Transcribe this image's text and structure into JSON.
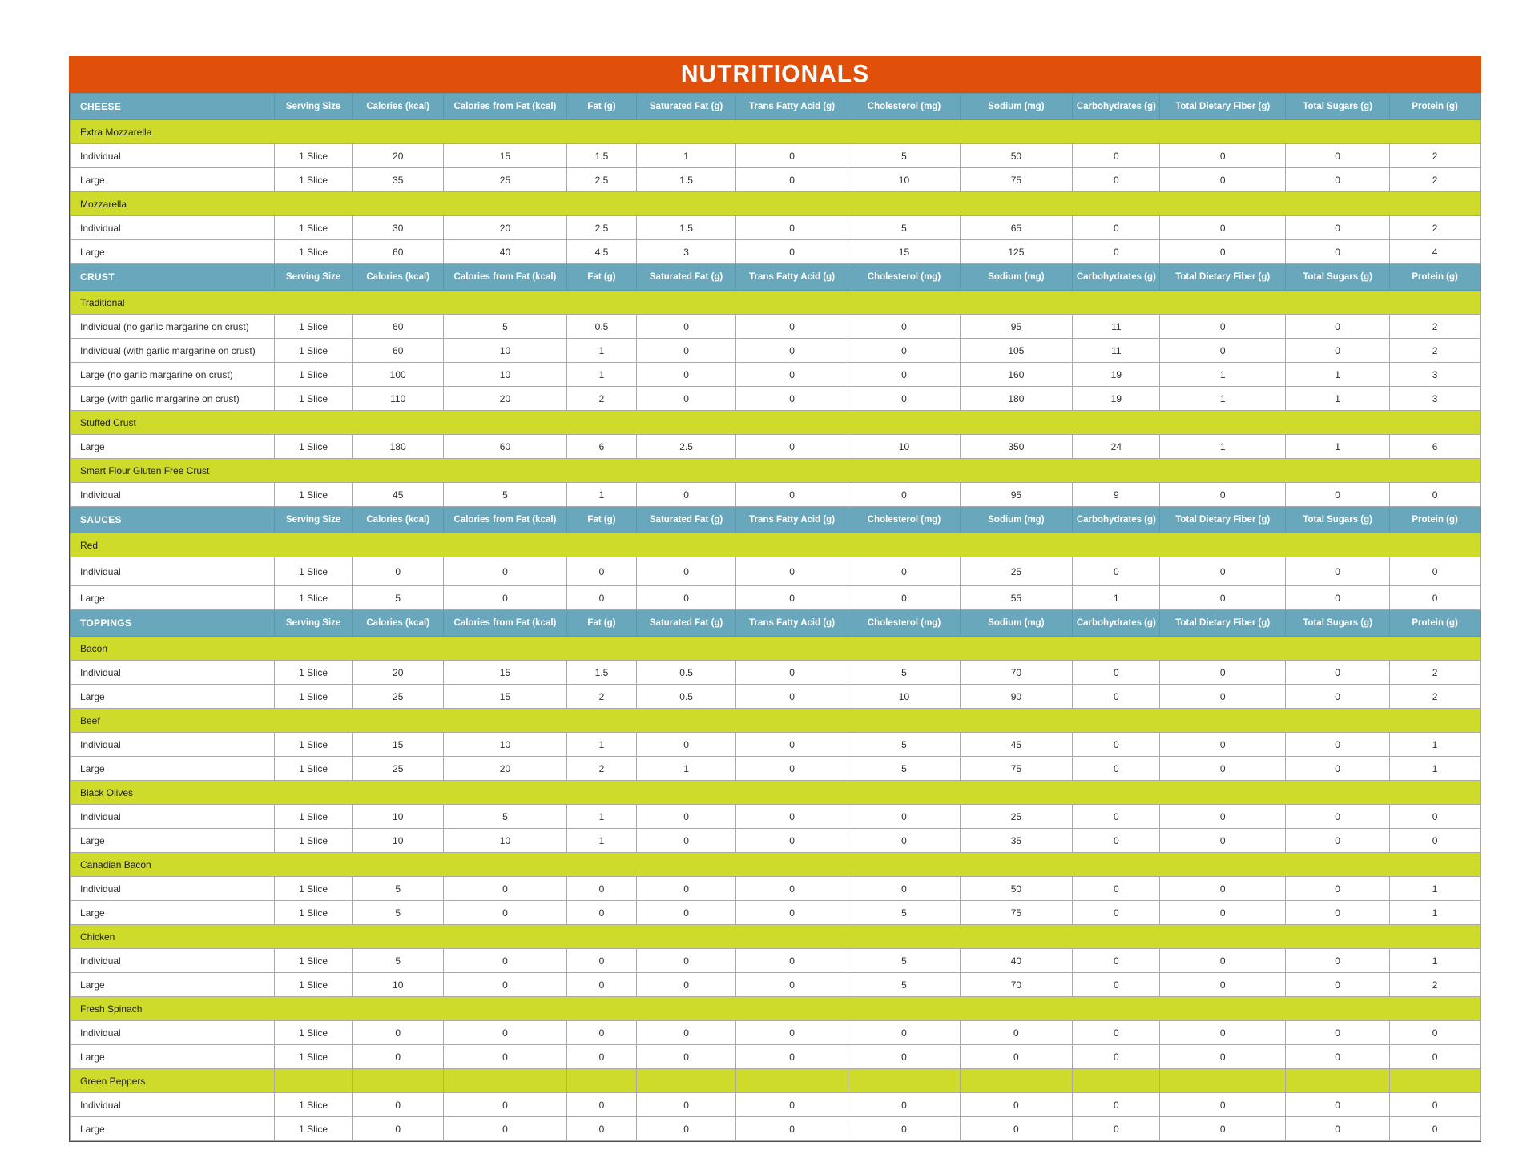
{
  "title": "NUTRITIONALS",
  "colors": {
    "header_orange": "#E0500B",
    "column_header_teal": "#69A8BC",
    "section_chartreuse": "#CEDB2A"
  },
  "columns": [
    "Serving Size",
    "Calories (kcal)",
    "Calories from Fat (kcal)",
    "Fat (g)",
    "Saturated Fat (g)",
    "Trans Fatty Acid (g)",
    "Cholesterol (mg)",
    "Sodium (mg)",
    "Carbohydrates (g)",
    "Total Dietary Fiber (g)",
    "Total Sugars (g)",
    "Protein (g)"
  ],
  "sections": [
    {
      "group": "CHEESE",
      "items": [
        {
          "name": "Extra Mozzarella",
          "rows": [
            {
              "label": "Individual",
              "values": [
                "1 Slice",
                "20",
                "15",
                "1.5",
                "1",
                "0",
                "5",
                "50",
                "0",
                "0",
                "0",
                "2"
              ]
            },
            {
              "label": "Large",
              "values": [
                "1 Slice",
                "35",
                "25",
                "2.5",
                "1.5",
                "0",
                "10",
                "75",
                "0",
                "0",
                "0",
                "2"
              ]
            }
          ]
        },
        {
          "name": "Mozzarella",
          "rows": [
            {
              "label": "Individual",
              "values": [
                "1 Slice",
                "30",
                "20",
                "2.5",
                "1.5",
                "0",
                "5",
                "65",
                "0",
                "0",
                "0",
                "2"
              ]
            },
            {
              "label": "Large",
              "values": [
                "1 Slice",
                "60",
                "40",
                "4.5",
                "3",
                "0",
                "15",
                "125",
                "0",
                "0",
                "0",
                "4"
              ]
            }
          ]
        }
      ]
    },
    {
      "group": "CRUST",
      "items": [
        {
          "name": "Traditional",
          "rows": [
            {
              "label": "Individual (no garlic margarine on crust)",
              "values": [
                "1 Slice",
                "60",
                "5",
                "0.5",
                "0",
                "0",
                "0",
                "95",
                "11",
                "0",
                "0",
                "2"
              ]
            },
            {
              "label": "Individual (with garlic margarine on crust)",
              "values": [
                "1 Slice",
                "60",
                "10",
                "1",
                "0",
                "0",
                "0",
                "105",
                "11",
                "0",
                "0",
                "2"
              ]
            },
            {
              "label": "Large (no garlic margarine on crust)",
              "values": [
                "1 Slice",
                "100",
                "10",
                "1",
                "0",
                "0",
                "0",
                "160",
                "19",
                "1",
                "1",
                "3"
              ]
            },
            {
              "label": "Large (with garlic margarine on crust)",
              "values": [
                "1 Slice",
                "110",
                "20",
                "2",
                "0",
                "0",
                "0",
                "180",
                "19",
                "1",
                "1",
                "3"
              ]
            }
          ]
        },
        {
          "name": "Stuffed Crust",
          "rows": [
            {
              "label": "Large",
              "values": [
                "1 Slice",
                "180",
                "60",
                "6",
                "2.5",
                "0",
                "10",
                "350",
                "24",
                "1",
                "1",
                "6"
              ]
            }
          ]
        },
        {
          "name": "Smart Flour Gluten Free Crust",
          "rows": [
            {
              "label": "Individual",
              "values": [
                "1 Slice",
                "45",
                "5",
                "1",
                "0",
                "0",
                "0",
                "95",
                "9",
                "0",
                "0",
                "0"
              ]
            }
          ]
        }
      ]
    },
    {
      "group": "SAUCES",
      "items": [
        {
          "name": "Red",
          "rows": [
            {
              "label": "Individual",
              "tall": true,
              "values": [
                "1 Slice",
                "0",
                "0",
                "0",
                "0",
                "0",
                "0",
                "25",
                "0",
                "0",
                "0",
                "0"
              ]
            },
            {
              "label": "Large",
              "values": [
                "1 Slice",
                "5",
                "0",
                "0",
                "0",
                "0",
                "0",
                "55",
                "1",
                "0",
                "0",
                "0"
              ]
            }
          ]
        }
      ]
    },
    {
      "group": "TOPPINGS",
      "items": [
        {
          "name": "Bacon",
          "rows": [
            {
              "label": "Individual",
              "values": [
                "1 Slice",
                "20",
                "15",
                "1.5",
                "0.5",
                "0",
                "5",
                "70",
                "0",
                "0",
                "0",
                "2"
              ]
            },
            {
              "label": "Large",
              "values": [
                "1 Slice",
                "25",
                "15",
                "2",
                "0.5",
                "0",
                "10",
                "90",
                "0",
                "0",
                "0",
                "2"
              ]
            }
          ]
        },
        {
          "name": "Beef",
          "rows": [
            {
              "label": "Individual",
              "values": [
                "1 Slice",
                "15",
                "10",
                "1",
                "0",
                "0",
                "5",
                "45",
                "0",
                "0",
                "0",
                "1"
              ]
            },
            {
              "label": "Large",
              "values": [
                "1 Slice",
                "25",
                "20",
                "2",
                "1",
                "0",
                "5",
                "75",
                "0",
                "0",
                "0",
                "1"
              ]
            }
          ]
        },
        {
          "name": "Black Olives",
          "rows": [
            {
              "label": "Individual",
              "values": [
                "1 Slice",
                "10",
                "5",
                "1",
                "0",
                "0",
                "0",
                "25",
                "0",
                "0",
                "0",
                "0"
              ]
            },
            {
              "label": "Large",
              "values": [
                "1 Slice",
                "10",
                "10",
                "1",
                "0",
                "0",
                "0",
                "35",
                "0",
                "0",
                "0",
                "0"
              ]
            }
          ]
        },
        {
          "name": "Canadian Bacon",
          "rows": [
            {
              "label": "Individual",
              "values": [
                "1 Slice",
                "5",
                "0",
                "0",
                "0",
                "0",
                "0",
                "50",
                "0",
                "0",
                "0",
                "1"
              ]
            },
            {
              "label": "Large",
              "values": [
                "1 Slice",
                "5",
                "0",
                "0",
                "0",
                "0",
                "5",
                "75",
                "0",
                "0",
                "0",
                "1"
              ]
            }
          ]
        },
        {
          "name": "Chicken",
          "rows": [
            {
              "label": "Individual",
              "values": [
                "1 Slice",
                "5",
                "0",
                "0",
                "0",
                "0",
                "5",
                "40",
                "0",
                "0",
                "0",
                "1"
              ]
            },
            {
              "label": "Large",
              "values": [
                "1 Slice",
                "10",
                "0",
                "0",
                "0",
                "0",
                "5",
                "70",
                "0",
                "0",
                "0",
                "2"
              ]
            }
          ]
        },
        {
          "name": "Fresh Spinach",
          "rows": [
            {
              "label": "Individual",
              "values": [
                "1 Slice",
                "0",
                "0",
                "0",
                "0",
                "0",
                "0",
                "0",
                "0",
                "0",
                "0",
                "0"
              ]
            },
            {
              "label": "Large",
              "values": [
                "1 Slice",
                "0",
                "0",
                "0",
                "0",
                "0",
                "0",
                "0",
                "0",
                "0",
                "0",
                "0"
              ]
            }
          ]
        },
        {
          "name": "Green Peppers",
          "divided": true,
          "rows": [
            {
              "label": "Individual",
              "values": [
                "1 Slice",
                "0",
                "0",
                "0",
                "0",
                "0",
                "0",
                "0",
                "0",
                "0",
                "0",
                "0"
              ]
            },
            {
              "label": "Large",
              "values": [
                "1 Slice",
                "0",
                "0",
                "0",
                "0",
                "0",
                "0",
                "0",
                "0",
                "0",
                "0",
                "0"
              ]
            }
          ]
        }
      ]
    }
  ]
}
